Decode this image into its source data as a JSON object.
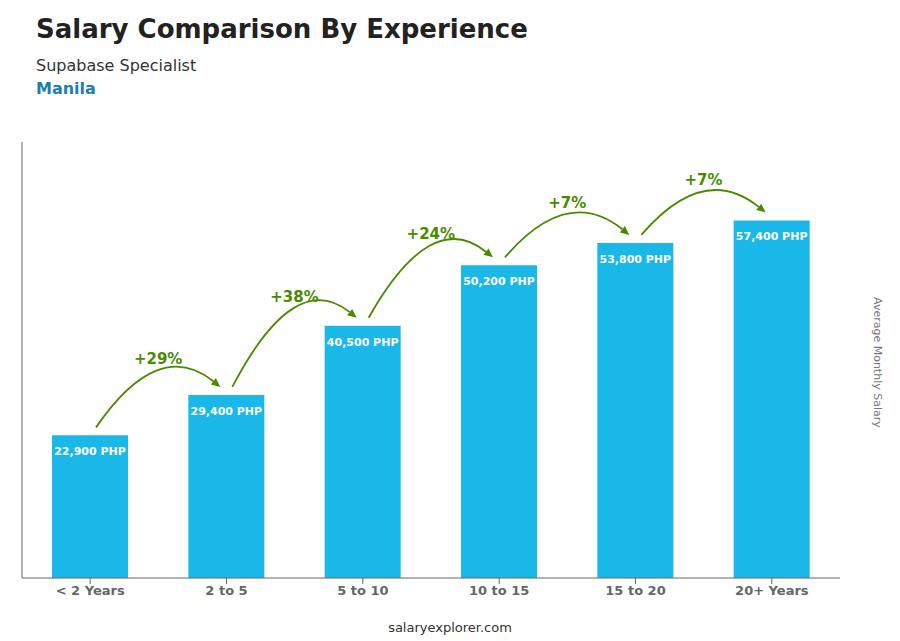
{
  "chart_data": {
    "type": "bar",
    "title": "Salary Comparison By Experience",
    "subtitle": [
      "Supabase Specialist",
      "Manila"
    ],
    "categories": [
      "< 2 Years",
      "2 to 5",
      "5 to 10",
      "10 to 15",
      "15 to 20",
      "20+ Years"
    ],
    "values": [
      22900,
      29400,
      40500,
      50200,
      53800,
      57400
    ],
    "value_labels": [
      "22,900 PHP",
      "29,400 PHP",
      "40,500 PHP",
      "50,200 PHP",
      "53,800 PHP",
      "57,400 PHP"
    ],
    "data_labels": true,
    "annotations": [
      "+29%",
      "+38%",
      "+24%",
      "+7%",
      "+7%"
    ],
    "ylabel": "Average Monthly Salary",
    "footer": "salaryexplorer.com",
    "color": "#1ab8e8",
    "ylim": [
      0,
      70000
    ],
    "tick_labels": "x",
    "grid": false
  }
}
